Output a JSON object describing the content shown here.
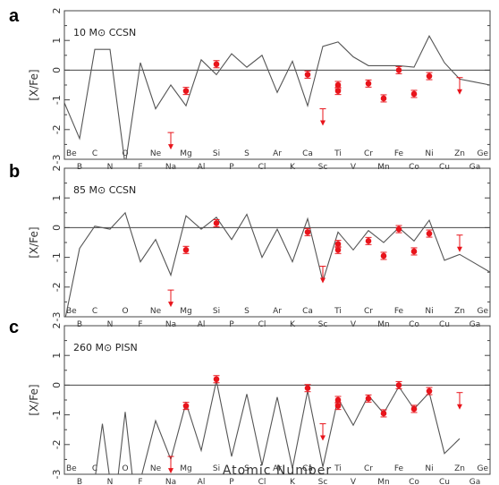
{
  "figure": {
    "xlabel": "Atomic Number",
    "ylabel": "[X/Fe]",
    "ylim": [
      -3,
      2
    ],
    "yticks": [
      -3,
      -2,
      -1,
      0,
      1,
      2
    ],
    "colors": {
      "model_line": "#555555",
      "zero_line": "#444444",
      "data": "#e8141b",
      "frame": "#444444"
    }
  },
  "chart_data": [
    {
      "type": "line",
      "panel": "a",
      "model_label": "10 M⊙ CCSN",
      "ylim": [
        -3,
        2
      ],
      "elements_top": [
        "Be",
        "C",
        "O",
        "Ne",
        "Mg",
        "Si",
        "S",
        "Ar",
        "Ca",
        "Ti",
        "Cr",
        "Fe",
        "Ni",
        "Zn",
        "Ge"
      ],
      "elements_bottom": [
        "B",
        "N",
        "F",
        "Na",
        "Al",
        "P",
        "Cl",
        "K",
        "Sc",
        "V",
        "Mn",
        "Co",
        "Cu",
        "Ga"
      ],
      "series": [
        {
          "kind": "model",
          "x": [
            4,
            5,
            6,
            7,
            8,
            9,
            10,
            11,
            12,
            13,
            14,
            15,
            16,
            17,
            18,
            19,
            20,
            21,
            22,
            23,
            24,
            25,
            26,
            27,
            28,
            29,
            30,
            31,
            32
          ],
          "values": [
            -1.1,
            -2.3,
            0.7,
            0.7,
            -3.2,
            0.25,
            -1.3,
            -0.5,
            -1.2,
            0.35,
            -0.15,
            0.55,
            0.1,
            0.5,
            -0.75,
            0.3,
            -1.2,
            0.8,
            0.95,
            0.45,
            0.15,
            0.15,
            0.15,
            0.1,
            1.15,
            0.25,
            -0.3,
            -0.4,
            -0.5
          ]
        },
        {
          "kind": "observed",
          "points": [
            {
              "el": "Mg",
              "x": 12,
              "y": -0.7
            },
            {
              "el": "Si",
              "x": 14,
              "y": 0.2
            },
            {
              "el": "Ca",
              "x": 20,
              "y": -0.15
            },
            {
              "el": "Ti",
              "x": 22,
              "y": -0.5
            },
            {
              "el": "Ti",
              "x": 22,
              "y": -0.7
            },
            {
              "el": "Cr",
              "x": 24,
              "y": -0.45
            },
            {
              "el": "Mn",
              "x": 25,
              "y": -0.95
            },
            {
              "el": "Fe",
              "x": 26,
              "y": 0.0
            },
            {
              "el": "Co",
              "x": 27,
              "y": -0.8
            },
            {
              "el": "Ni",
              "x": 28,
              "y": -0.2
            }
          ]
        },
        {
          "kind": "upper_limit",
          "points": [
            {
              "el": "Na",
              "x": 11,
              "y": -2.1
            },
            {
              "el": "Sc",
              "x": 21,
              "y": -1.3
            },
            {
              "el": "Zn",
              "x": 30,
              "y": -0.25
            }
          ]
        }
      ]
    },
    {
      "type": "line",
      "panel": "b",
      "model_label": "85 M⊙ CCSN",
      "ylim": [
        -3,
        2
      ],
      "elements_top": [
        "Be",
        "C",
        "O",
        "Ne",
        "Mg",
        "Si",
        "S",
        "Ar",
        "Ca",
        "Ti",
        "Cr",
        "Fe",
        "Ni",
        "Zn",
        "Ge"
      ],
      "elements_bottom": [
        "B",
        "N",
        "F",
        "Na",
        "Al",
        "P",
        "Cl",
        "K",
        "Sc",
        "V",
        "Mn",
        "Co",
        "Cu",
        "Ga"
      ],
      "series": [
        {
          "kind": "model",
          "x": [
            4,
            5,
            6,
            7,
            8,
            9,
            10,
            11,
            12,
            13,
            14,
            15,
            16,
            17,
            18,
            19,
            20,
            21,
            22,
            23,
            24,
            25,
            26,
            27,
            28,
            29,
            30,
            31,
            32
          ],
          "values": [
            -3.2,
            -0.7,
            0.05,
            -0.05,
            0.5,
            -1.15,
            -0.4,
            -1.6,
            0.4,
            -0.05,
            0.35,
            -0.4,
            0.45,
            -1.0,
            -0.05,
            -1.15,
            0.3,
            -1.8,
            -0.15,
            -0.75,
            -0.1,
            -0.5,
            0.0,
            -0.45,
            0.25,
            -1.1,
            -0.9,
            -1.2,
            -1.5
          ]
        },
        {
          "kind": "observed",
          "points": [
            {
              "el": "Mg",
              "x": 12,
              "y": -0.75
            },
            {
              "el": "Si",
              "x": 14,
              "y": 0.15
            },
            {
              "el": "Ca",
              "x": 20,
              "y": -0.15
            },
            {
              "el": "Ti",
              "x": 22,
              "y": -0.55
            },
            {
              "el": "Ti",
              "x": 22,
              "y": -0.75
            },
            {
              "el": "Cr",
              "x": 24,
              "y": -0.45
            },
            {
              "el": "Mn",
              "x": 25,
              "y": -0.95
            },
            {
              "el": "Fe",
              "x": 26,
              "y": -0.05
            },
            {
              "el": "Co",
              "x": 27,
              "y": -0.8
            },
            {
              "el": "Ni",
              "x": 28,
              "y": -0.2
            }
          ]
        },
        {
          "kind": "upper_limit",
          "points": [
            {
              "el": "Na",
              "x": 11,
              "y": -2.1
            },
            {
              "el": "Sc",
              "x": 21,
              "y": -1.3
            },
            {
              "el": "Zn",
              "x": 30,
              "y": -0.25
            }
          ]
        }
      ]
    },
    {
      "type": "line",
      "panel": "c",
      "model_label": "260 M⊙ PISN",
      "ylim": [
        -3,
        2
      ],
      "elements_top": [
        "Be",
        "C",
        "O",
        "Ne",
        "Mg",
        "Si",
        "S",
        "Ar",
        "Ca",
        "Ti",
        "Cr",
        "Fe",
        "Ni",
        "Zn",
        "Ge"
      ],
      "elements_bottom": [
        "B",
        "N",
        "F",
        "Na",
        "Al",
        "P",
        "Cl",
        "K",
        "Sc",
        "V",
        "Mn",
        "Co",
        "Cu",
        "Ga"
      ],
      "series": [
        {
          "kind": "model",
          "x": [
            6,
            6.5,
            7,
            7.5,
            8,
            8.5,
            9,
            10,
            11,
            12,
            13,
            14,
            15,
            16,
            17,
            18,
            19,
            20,
            21,
            22,
            23,
            24,
            25,
            26,
            27,
            28,
            29,
            30
          ],
          "values": [
            -3.2,
            -1.3,
            -3.2,
            -3.2,
            -0.9,
            -3.2,
            -3.2,
            -1.2,
            -2.5,
            -0.6,
            -2.2,
            0.15,
            -2.4,
            -0.3,
            -2.7,
            -0.4,
            -2.8,
            -0.2,
            -2.75,
            -0.45,
            -1.35,
            -0.35,
            -0.95,
            -0.05,
            -0.8,
            -0.25,
            -2.3,
            -1.8
          ]
        },
        {
          "kind": "observed",
          "points": [
            {
              "el": "Mg",
              "x": 12,
              "y": -0.7
            },
            {
              "el": "Si",
              "x": 14,
              "y": 0.2
            },
            {
              "el": "Ca",
              "x": 20,
              "y": -0.1
            },
            {
              "el": "Ti",
              "x": 22,
              "y": -0.5
            },
            {
              "el": "Ti",
              "x": 22,
              "y": -0.7
            },
            {
              "el": "Cr",
              "x": 24,
              "y": -0.45
            },
            {
              "el": "Mn",
              "x": 25,
              "y": -0.95
            },
            {
              "el": "Fe",
              "x": 26,
              "y": 0.0
            },
            {
              "el": "Co",
              "x": 27,
              "y": -0.8
            },
            {
              "el": "Ni",
              "x": 28,
              "y": -0.2
            }
          ]
        },
        {
          "kind": "upper_limit",
          "points": [
            {
              "el": "Na",
              "x": 11,
              "y": -2.4
            },
            {
              "el": "Sc",
              "x": 21,
              "y": -1.3
            },
            {
              "el": "Zn",
              "x": 30,
              "y": -0.25
            }
          ]
        }
      ]
    }
  ]
}
